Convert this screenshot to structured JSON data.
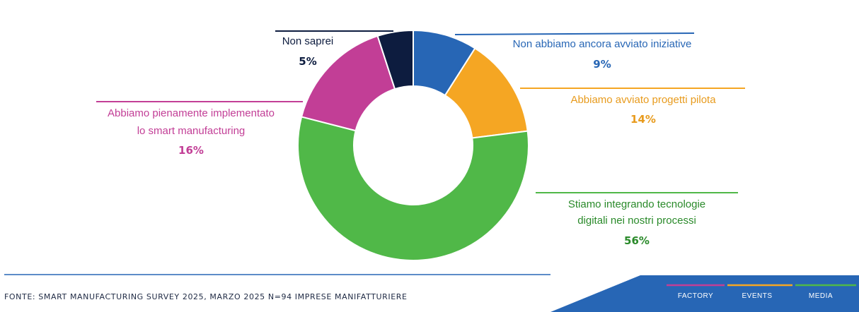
{
  "chart_data": {
    "type": "pie",
    "donut": true,
    "start_angle_deg": 0,
    "direction": "clockwise",
    "slices": [
      {
        "label_lines": [
          "Non abbiamo ancora avviato iniziative"
        ],
        "value": 9,
        "value_label": "9%",
        "color": "#2766b5"
      },
      {
        "label_lines": [
          "Abbiamo avviato progetti pilota"
        ],
        "value": 14,
        "value_label": "14%",
        "color": "#f5a623"
      },
      {
        "label_lines": [
          "Stiamo integrando tecnologie",
          "digitali nei nostri processi"
        ],
        "value": 56,
        "value_label": "56%",
        "color": "#50b848"
      },
      {
        "label_lines": [
          "Abbiamo pienamente implementato",
          "lo smart manufacturing"
        ],
        "value": 16,
        "value_label": "16%",
        "color": "#c23e96"
      },
      {
        "label_lines": [
          "Non saprei"
        ],
        "value": 5,
        "value_label": "5%",
        "color": "#0d1c3f"
      }
    ],
    "label_text_colors": [
      "#2766b5",
      "#e89b1d",
      "#2a8a2a",
      "#c23e96",
      "#0d1c3f"
    ]
  },
  "footer": {
    "source": "FONTE: SMART MANUFACTURING SURVEY 2025, MARZO 2025  N=94 IMPRESE MANIFATTURIERE",
    "nav": [
      {
        "label": "FACTORY",
        "color": "#c23e96"
      },
      {
        "label": "EVENTS",
        "color": "#f5a623"
      },
      {
        "label": "MEDIA",
        "color": "#50b848"
      }
    ],
    "band_color": "#2766b5",
    "rule_color": "#2766b5"
  }
}
